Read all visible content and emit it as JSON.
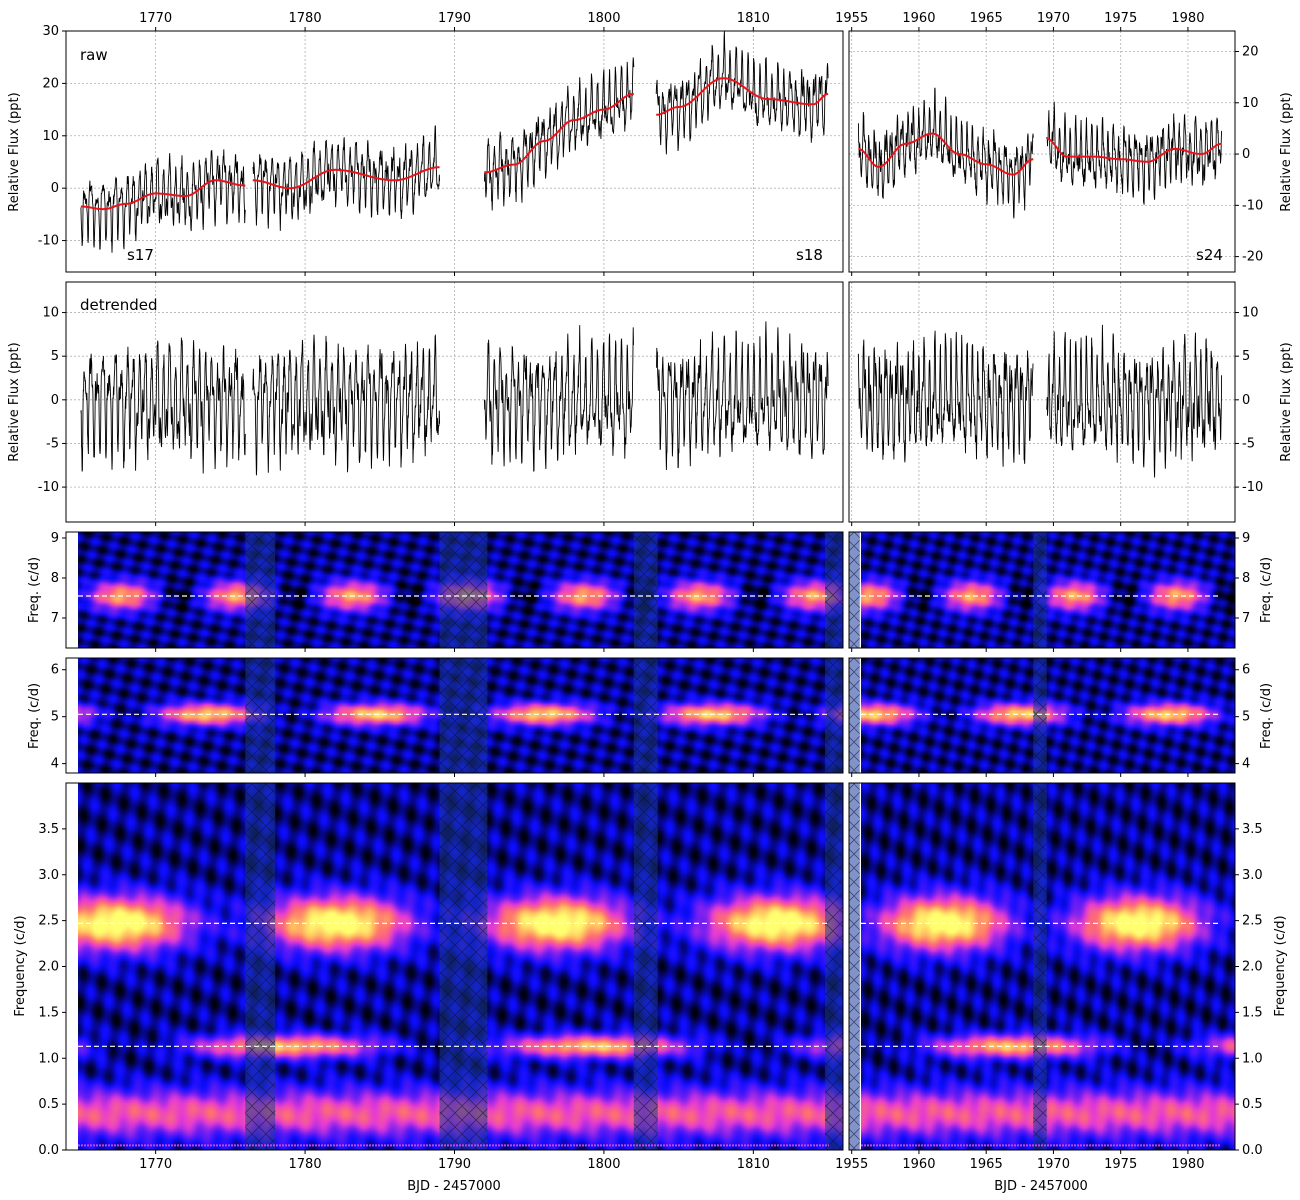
{
  "chart_data": {
    "type": "line",
    "xlabel": "BJD - 2457000",
    "left_x": {
      "range": [
        1764,
        1816
      ],
      "ticks": [
        1770,
        1780,
        1790,
        1800,
        1810
      ],
      "tick_labels": [
        "1770",
        "1780",
        "1790",
        "1800",
        "1810"
      ]
    },
    "right_x": {
      "range": [
        1954.8,
        1983.5
      ],
      "ticks": [
        1955,
        1960,
        1965,
        1970,
        1975,
        1980
      ],
      "tick_labels": [
        "1955",
        "1960",
        "1965",
        "1970",
        "1975",
        "1980"
      ]
    },
    "panels": [
      {
        "id": "raw",
        "annotation": "raw",
        "ylabel": "Relative Flux (ppt)",
        "left_ylim": [
          -16,
          30
        ],
        "left_yticks": [
          -10,
          0,
          10,
          20,
          30
        ],
        "right_ylim": [
          -23,
          24
        ],
        "right_yticks": [
          -20,
          -10,
          0,
          10,
          20
        ],
        "sector_labels": [
          "s17",
          "s18",
          "s24"
        ],
        "series": [
          {
            "role": "flux",
            "color": "#000000"
          },
          {
            "role": "trend",
            "color": "#e8121a"
          }
        ],
        "trend_left": [
          {
            "x": [
              1765,
              1766.5,
              1768,
              1770,
              1772,
              1774,
              1776
            ],
            "y": [
              -3.5,
              -4,
              -3,
              -1,
              -1.5,
              1.5,
              0.5
            ]
          },
          {
            "x": [
              1776.5,
              1779,
              1782,
              1786,
              1789
            ],
            "y": [
              1.5,
              0,
              3.5,
              1.5,
              4
            ]
          },
          {
            "x": [
              1792,
              1794,
              1796,
              1798,
              1800,
              1802
            ],
            "y": [
              3,
              4.5,
              9,
              13,
              15,
              18
            ]
          },
          {
            "x": [
              1803.5,
              1805,
              1808,
              1811,
              1814,
              1815
            ],
            "y": [
              14,
              15.5,
              21,
              17,
              16,
              18
            ]
          }
        ],
        "trend_right": [
          {
            "x": [
              1955.5,
              1957,
              1959,
              1961,
              1963,
              1965,
              1967,
              1968.5
            ],
            "y": [
              1,
              -2.5,
              2,
              4,
              0,
              -2,
              -4,
              -1
            ]
          },
          {
            "x": [
              1969.5,
              1971,
              1973,
              1975,
              1977,
              1979,
              1981,
              1982.5
            ],
            "y": [
              3,
              -0.5,
              -0.5,
              -1,
              -1.5,
              1,
              0,
              2
            ]
          }
        ]
      },
      {
        "id": "detrended",
        "annotation": "detrended",
        "ylabel": "Relative Flux (ppt)",
        "left_ylim": [
          -14,
          13.5
        ],
        "left_yticks": [
          -10,
          -5,
          0,
          5,
          10
        ],
        "right_ylim": [
          -14,
          13.5
        ],
        "right_yticks": [
          -10,
          -5,
          0,
          5,
          10
        ],
        "series": [
          {
            "role": "flux",
            "color": "#000000"
          }
        ]
      },
      {
        "id": "wavelet-high",
        "ylabel": "Freq. (c/d)",
        "ylim": [
          6.25,
          9.15
        ],
        "yticks": [
          7,
          8,
          9
        ],
        "dashed_lines": [
          7.55
        ]
      },
      {
        "id": "wavelet-mid",
        "ylabel": "Freq. (c/d)",
        "ylim": [
          3.8,
          6.25
        ],
        "yticks": [
          4,
          5,
          6
        ],
        "dashed_lines": [
          5.05
        ]
      },
      {
        "id": "wavelet-low",
        "ylabel": "Frequency (c/d)",
        "ylim": [
          0,
          4.0
        ],
        "yticks": [
          0.0,
          0.5,
          1.0,
          1.5,
          2.0,
          2.5,
          3.0,
          3.5
        ],
        "tick_labels": [
          "0.0",
          "0.5",
          "1.0",
          "1.5",
          "2.0",
          "2.5",
          "3.0",
          "3.5"
        ],
        "dashed_lines": [
          2.47,
          1.13
        ]
      }
    ],
    "segments_left": [
      [
        1765,
        1776
      ],
      [
        1776.5,
        1789
      ],
      [
        1792,
        1802
      ],
      [
        1803.5,
        1815
      ]
    ],
    "segments_right": [
      [
        1955.5,
        1968.5
      ],
      [
        1969.5,
        1982.5
      ]
    ],
    "gaps_left": [
      [
        1776,
        1778
      ],
      [
        1789,
        1792.2
      ],
      [
        1802,
        1803.6
      ],
      [
        1814.8,
        1816
      ]
    ],
    "gaps_right": [
      [
        1954.8,
        1955.6
      ],
      [
        1968.5,
        1969.5
      ]
    ],
    "colormap": [
      "#000000",
      "#0c0cff",
      "#6a1df4",
      "#e63bd4",
      "#ff7070",
      "#ffc060",
      "#ffff70"
    ]
  }
}
